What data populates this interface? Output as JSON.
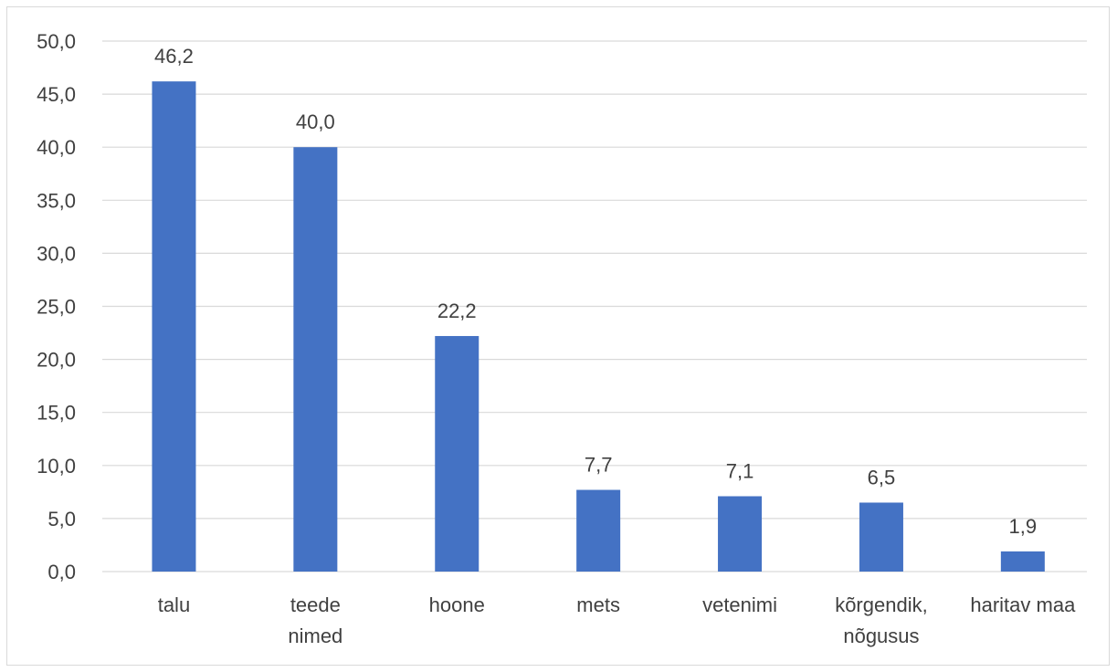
{
  "chart_data": {
    "type": "bar",
    "categories": [
      "talu",
      "teede nimed",
      "hoone",
      "mets",
      "vetenimi",
      "kõrgendik, nõgusus",
      "haritav maa"
    ],
    "category_lines": [
      [
        "talu"
      ],
      [
        "teede",
        "nimed"
      ],
      [
        "hoone"
      ],
      [
        "mets"
      ],
      [
        "vetenimi"
      ],
      [
        "kõrgendik,",
        "nõgusus"
      ],
      [
        "haritav maa"
      ]
    ],
    "values": [
      46.2,
      40.0,
      22.2,
      7.7,
      7.1,
      6.5,
      1.9
    ],
    "data_labels": [
      "46,2",
      "40,0",
      "22,2",
      "7,7",
      "7,1",
      "6,5",
      "1,9"
    ],
    "y_ticks": [
      0,
      5,
      10,
      15,
      20,
      25,
      30,
      35,
      40,
      45,
      50
    ],
    "y_tick_labels": [
      "0,0",
      "5,0",
      "10,0",
      "15,0",
      "20,0",
      "25,0",
      "30,0",
      "35,0",
      "40,0",
      "45,0",
      "50,0"
    ],
    "ylim": [
      0,
      50
    ],
    "grid": true,
    "legend": "none",
    "bar_color": "#4472C4",
    "grid_color": "#d9d9d9"
  }
}
